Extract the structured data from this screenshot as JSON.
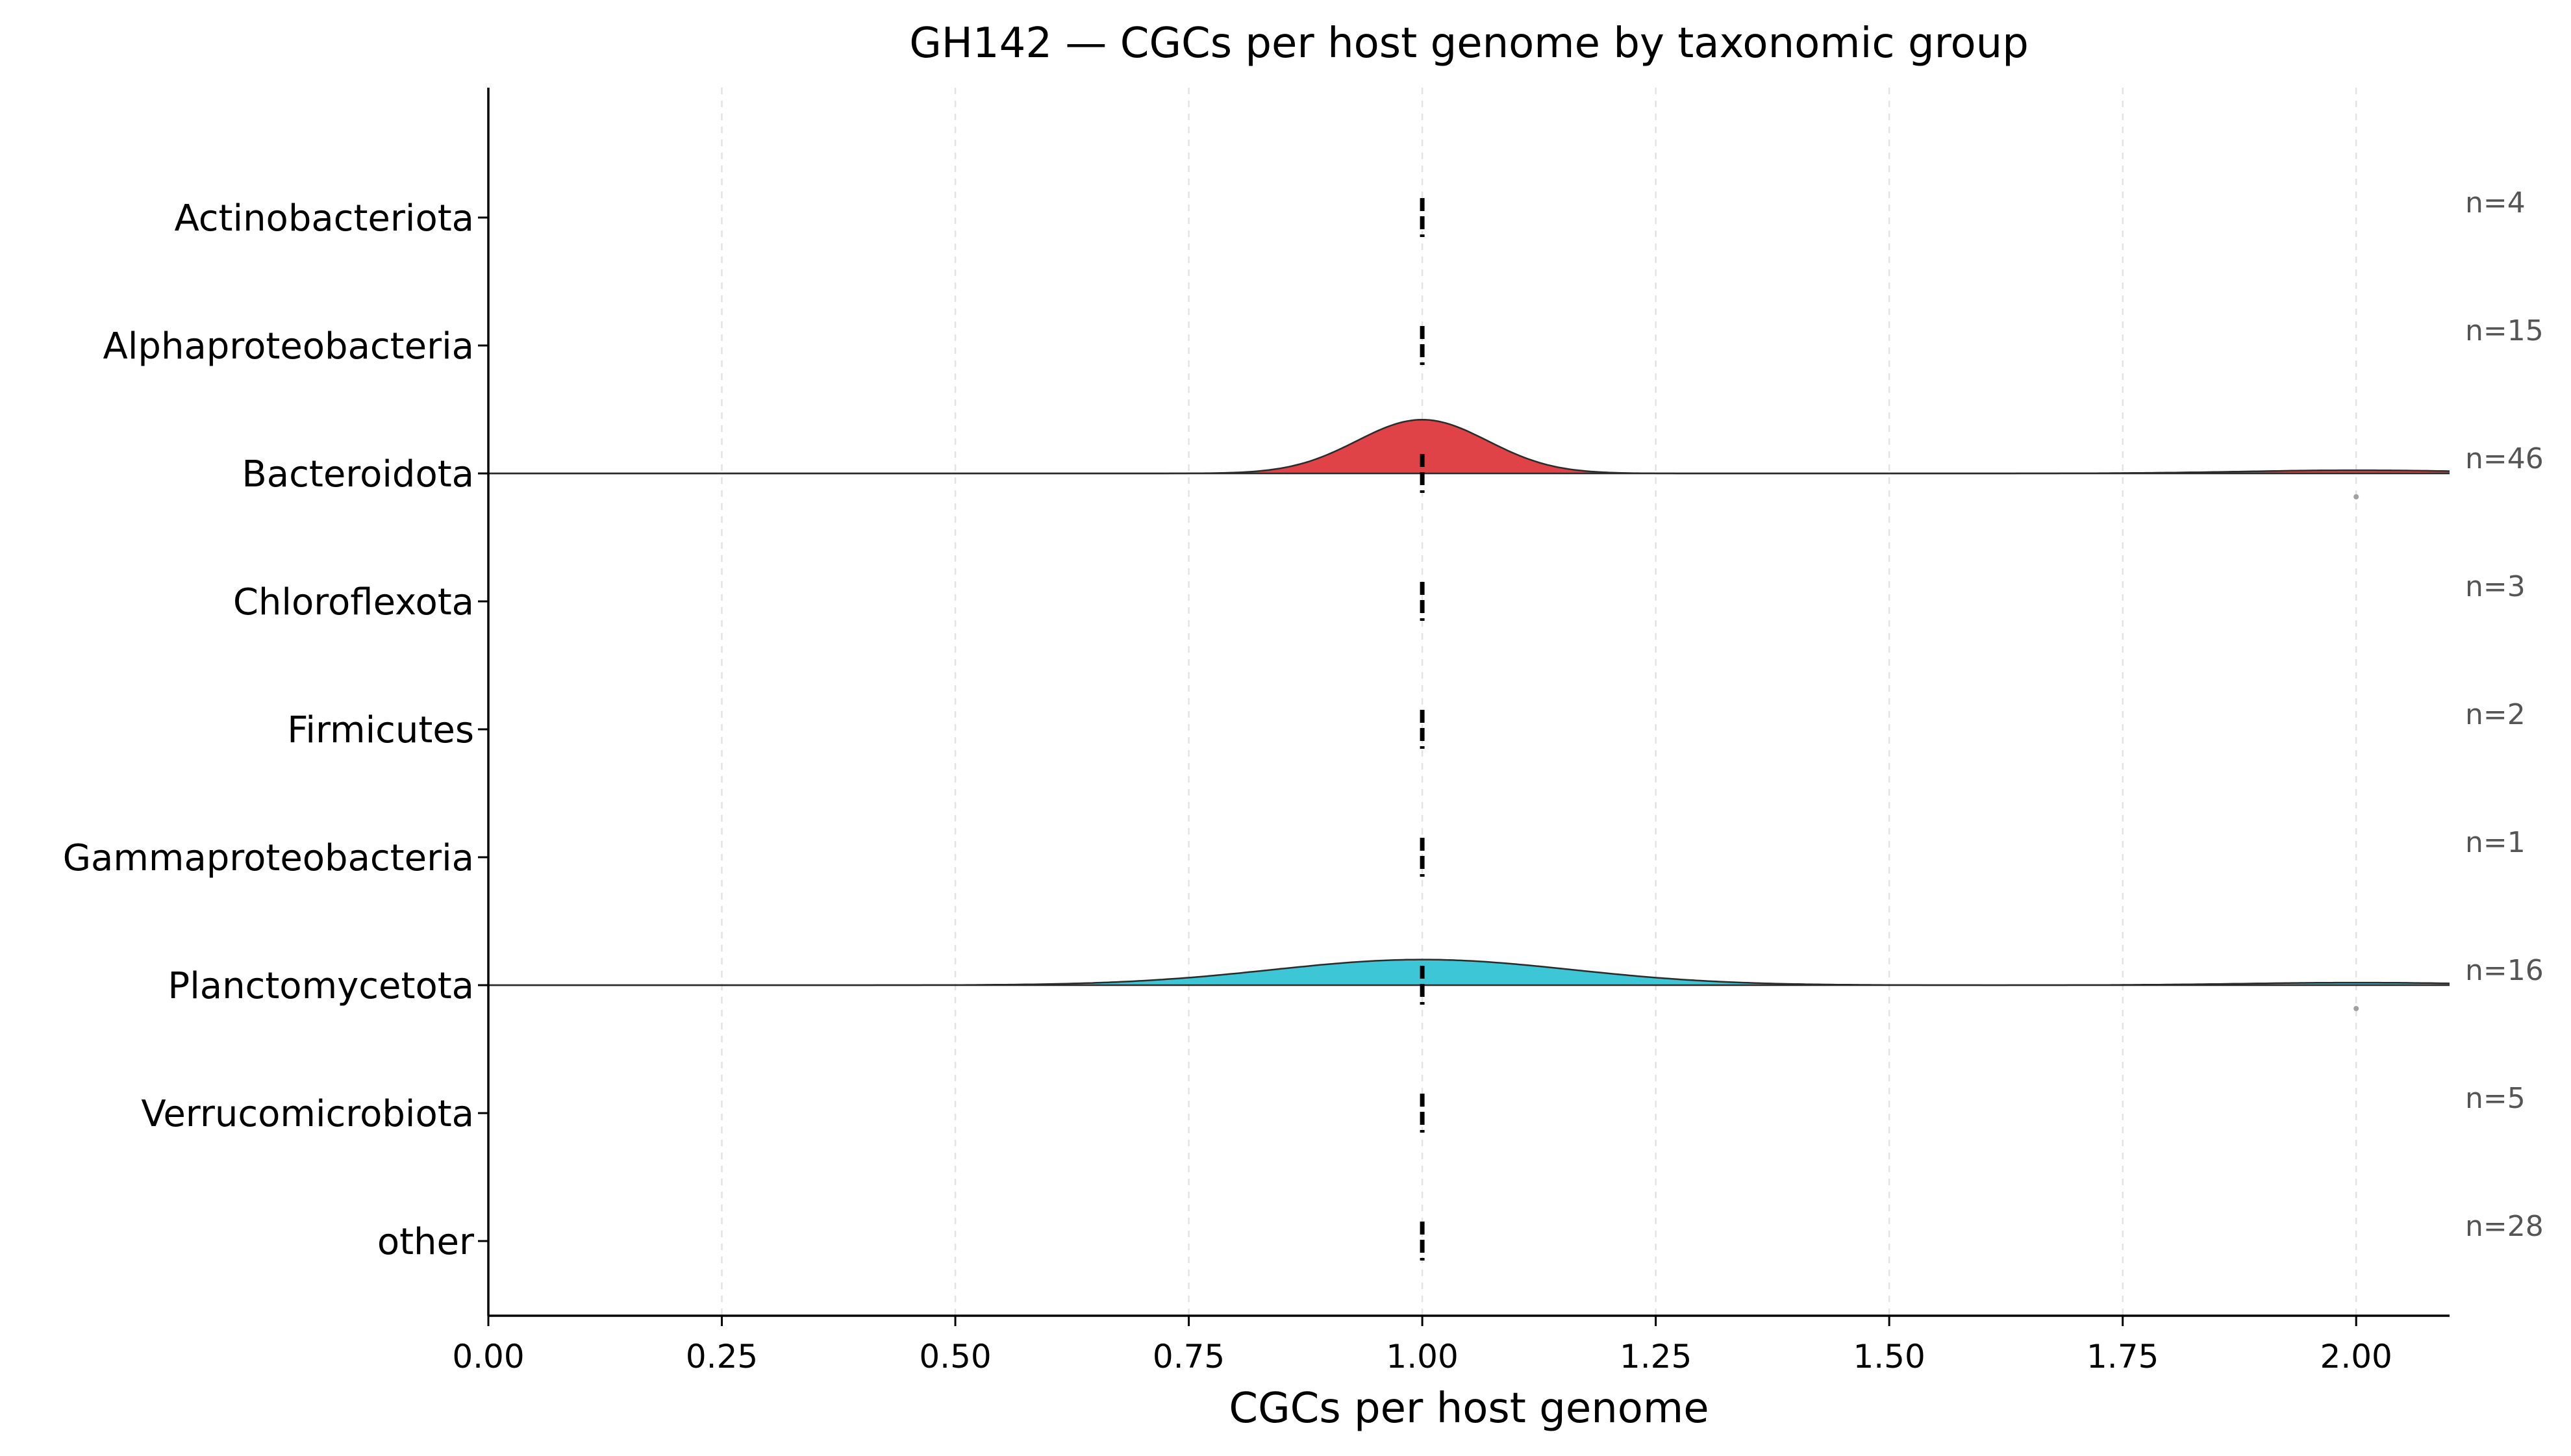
{
  "chart_data": {
    "type": "ridgeline",
    "title": "GH142 — CGCs per host genome by taxonomic group",
    "xlabel": "CGCs per host genome",
    "ylabel": "",
    "xlim": [
      0.0,
      2.1
    ],
    "x_ticks": [
      0.0,
      0.25,
      0.5,
      0.75,
      1.0,
      1.25,
      1.5,
      1.75,
      2.0
    ],
    "x_tick_labels": [
      "0.00",
      "0.25",
      "0.50",
      "0.75",
      "1.00",
      "1.25",
      "1.50",
      "1.75",
      "2.00"
    ],
    "grid": "vertical dashed",
    "median_marker": "dashed black line",
    "groups": [
      {
        "name": "Actinobacteriota",
        "n_label": "n=4",
        "median": 1.0,
        "has_density": false
      },
      {
        "name": "Alphaproteobacteria",
        "n_label": "n=15",
        "median": 1.0,
        "has_density": false
      },
      {
        "name": "Bacteroidota",
        "n_label": "n=46",
        "median": 1.0,
        "has_density": true,
        "color": "#e04347",
        "bandwidth": 0.07,
        "peak_height": 0.42,
        "tail_x": 2.0,
        "tail_height": 0.025,
        "outlier_x": 2.0
      },
      {
        "name": "Chloroflexota",
        "n_label": "n=3",
        "median": 1.0,
        "has_density": false
      },
      {
        "name": "Firmicutes",
        "n_label": "n=2",
        "median": 1.0,
        "has_density": false
      },
      {
        "name": "Gammaproteobacteria",
        "n_label": "n=1",
        "median": 1.0,
        "has_density": false
      },
      {
        "name": "Planctomycetota",
        "n_label": "n=16",
        "median": 1.0,
        "has_density": true,
        "color": "#3cc6d6",
        "bandwidth": 0.16,
        "peak_height": 0.2,
        "tail_x": 2.0,
        "tail_height": 0.02,
        "outlier_x": 2.0
      },
      {
        "name": "Verrucomicrobiota",
        "n_label": "n=5",
        "median": 1.0,
        "has_density": false
      },
      {
        "name": "other",
        "n_label": "n=28",
        "median": 1.0,
        "has_density": false
      }
    ]
  }
}
